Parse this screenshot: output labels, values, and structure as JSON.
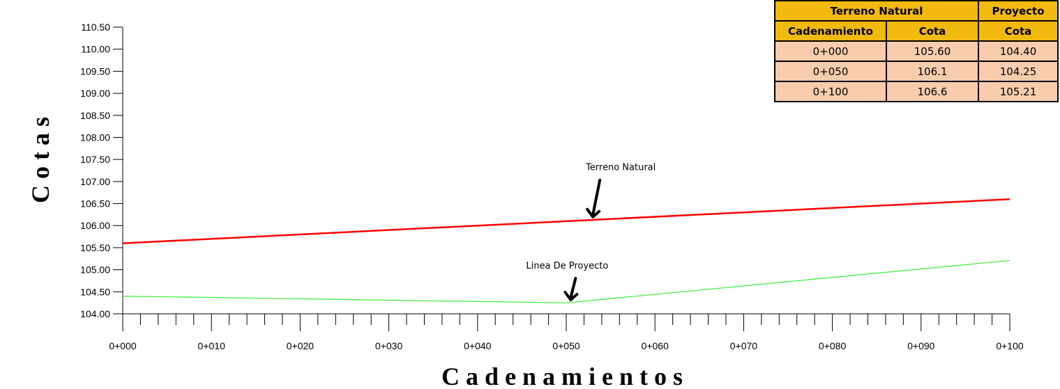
{
  "chart_data": {
    "type": "line",
    "ylabel": "C o t a s",
    "xlabel": "C a d e n a m i e n t o s",
    "ylim": [
      104.0,
      110.5
    ],
    "yticks": [
      "110.50",
      "110.00",
      "109.50",
      "109.00",
      "108.50",
      "108.00",
      "107.50",
      "107.00",
      "106.50",
      "106.00",
      "105.50",
      "105.00",
      "104.50",
      "104.00"
    ],
    "xlim": [
      0,
      100
    ],
    "xticks": [
      "0+000",
      "0+010",
      "0+020",
      "0+030",
      "0+040",
      "0+050",
      "0+060",
      "0+070",
      "0+080",
      "0+090",
      "0+100"
    ],
    "series": [
      {
        "name": "Terreno Natural",
        "color": "#ff0000",
        "x": [
          0,
          50,
          100
        ],
        "y": [
          105.6,
          106.1,
          106.6
        ]
      },
      {
        "name": "Linea De Proyecto",
        "color": "#33ee33",
        "x": [
          0,
          50,
          100
        ],
        "y": [
          104.4,
          104.25,
          105.21
        ]
      }
    ],
    "annotations": [
      {
        "text": "Terreno Natural",
        "target_x": 53,
        "target_y": 106.15
      },
      {
        "text": "Linea De Proyecto",
        "target_x": 50.5,
        "target_y": 104.27
      }
    ]
  },
  "table": {
    "group_headers": [
      "Terreno Natural",
      "Proyecto"
    ],
    "headers": [
      "Cadenamiento",
      "Cota",
      "Cota"
    ],
    "rows": [
      [
        "0+000",
        "105.60",
        "104.40"
      ],
      [
        "0+050",
        "106.1",
        "104.25"
      ],
      [
        "0+100",
        "106.6",
        "105.21"
      ]
    ],
    "colors": {
      "header": "#f2b90f",
      "cell": "#f8ccad"
    }
  }
}
